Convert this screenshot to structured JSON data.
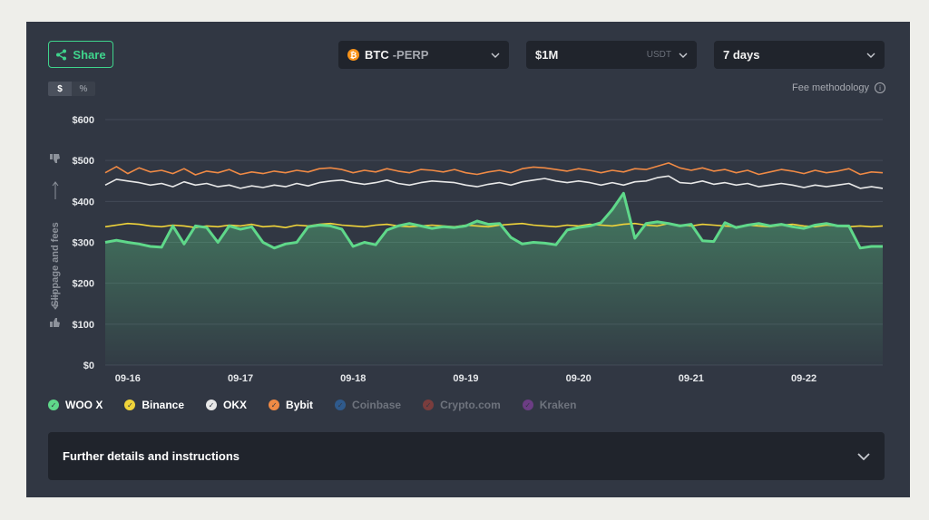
{
  "toolbar": {
    "share_label": "Share",
    "symbol": "BTC",
    "symbol_suffix": "-PERP",
    "size": "$1M",
    "size_unit": "USDT",
    "period": "7 days"
  },
  "unit_toggle": {
    "dollar": "$",
    "percent": "%"
  },
  "fee_link": "Fee methodology",
  "details_label": "Further details and instructions",
  "colors": {
    "woo": "#5fd88a",
    "binance": "#f0d43a",
    "okx": "#e8e8e8",
    "bybit": "#f08a45",
    "coinbase": "#2f5a8c",
    "cryptocom": "#7a3d3d",
    "kraken": "#6c3d84"
  },
  "chart_data": {
    "type": "line",
    "ylabel": "Slippage and fees",
    "ylim": [
      0,
      600
    ],
    "yticks": [
      "$0",
      "$100",
      "$200",
      "$300",
      "$400",
      "$500",
      "$600"
    ],
    "xlim": [
      0,
      6.9
    ],
    "xticks": [
      {
        "x": 0.2,
        "label": "09-16"
      },
      {
        "x": 1.2,
        "label": "09-17"
      },
      {
        "x": 2.2,
        "label": "09-18"
      },
      {
        "x": 3.2,
        "label": "09-19"
      },
      {
        "x": 4.2,
        "label": "09-20"
      },
      {
        "x": 5.2,
        "label": "09-21"
      },
      {
        "x": 6.2,
        "label": "09-22"
      }
    ],
    "grid": true,
    "legend": [
      {
        "key": "woo",
        "name": "WOO X",
        "active": true
      },
      {
        "key": "binance",
        "name": "Binance",
        "active": true
      },
      {
        "key": "okx",
        "name": "OKX",
        "active": true
      },
      {
        "key": "bybit",
        "name": "Bybit",
        "active": true
      },
      {
        "key": "coinbase",
        "name": "Coinbase",
        "active": false
      },
      {
        "key": "cryptocom",
        "name": "Crypto.com",
        "active": false
      },
      {
        "key": "kraken",
        "name": "Kraken",
        "active": false
      }
    ],
    "series": [
      {
        "key": "bybit",
        "name": "Bybit",
        "x": [
          0,
          0.1,
          0.2,
          0.3,
          0.4,
          0.5,
          0.6,
          0.7,
          0.8,
          0.9,
          1.0,
          1.1,
          1.2,
          1.3,
          1.4,
          1.5,
          1.6,
          1.7,
          1.8,
          1.9,
          2.0,
          2.1,
          2.2,
          2.3,
          2.4,
          2.5,
          2.6,
          2.7,
          2.8,
          2.9,
          3.0,
          3.1,
          3.2,
          3.3,
          3.4,
          3.5,
          3.6,
          3.7,
          3.8,
          3.9,
          4.0,
          4.1,
          4.2,
          4.3,
          4.4,
          4.5,
          4.6,
          4.7,
          4.8,
          4.9,
          5.0,
          5.1,
          5.2,
          5.3,
          5.4,
          5.5,
          5.6,
          5.7,
          5.8,
          5.9,
          6.0,
          6.1,
          6.2,
          6.3,
          6.4,
          6.5,
          6.6,
          6.7,
          6.8,
          6.9
        ],
        "y": [
          470,
          485,
          468,
          482,
          472,
          476,
          468,
          480,
          465,
          474,
          470,
          478,
          466,
          472,
          468,
          474,
          470,
          476,
          472,
          480,
          482,
          478,
          470,
          476,
          472,
          480,
          474,
          470,
          478,
          476,
          472,
          478,
          470,
          466,
          472,
          476,
          470,
          480,
          484,
          482,
          478,
          474,
          480,
          476,
          470,
          476,
          472,
          480,
          478,
          486,
          494,
          482,
          476,
          482,
          474,
          478,
          470,
          476,
          466,
          472,
          478,
          474,
          468,
          476,
          470,
          474,
          480,
          466,
          472,
          470
        ]
      },
      {
        "key": "okx",
        "name": "OKX",
        "x": [
          0,
          0.1,
          0.2,
          0.3,
          0.4,
          0.5,
          0.6,
          0.7,
          0.8,
          0.9,
          1.0,
          1.1,
          1.2,
          1.3,
          1.4,
          1.5,
          1.6,
          1.7,
          1.8,
          1.9,
          2.0,
          2.1,
          2.2,
          2.3,
          2.4,
          2.5,
          2.6,
          2.7,
          2.8,
          2.9,
          3.0,
          3.1,
          3.2,
          3.3,
          3.4,
          3.5,
          3.6,
          3.7,
          3.8,
          3.9,
          4.0,
          4.1,
          4.2,
          4.3,
          4.4,
          4.5,
          4.6,
          4.7,
          4.8,
          4.9,
          5.0,
          5.1,
          5.2,
          5.3,
          5.4,
          5.5,
          5.6,
          5.7,
          5.8,
          5.9,
          6.0,
          6.1,
          6.2,
          6.3,
          6.4,
          6.5,
          6.6,
          6.7,
          6.8,
          6.9
        ],
        "y": [
          440,
          454,
          450,
          446,
          440,
          444,
          436,
          448,
          440,
          444,
          436,
          440,
          432,
          438,
          434,
          440,
          436,
          444,
          438,
          446,
          450,
          452,
          446,
          442,
          446,
          452,
          444,
          440,
          446,
          450,
          448,
          446,
          440,
          436,
          442,
          446,
          440,
          448,
          452,
          456,
          450,
          446,
          450,
          446,
          440,
          446,
          440,
          448,
          450,
          458,
          462,
          446,
          444,
          450,
          442,
          446,
          440,
          444,
          436,
          440,
          444,
          440,
          434,
          440,
          436,
          440,
          444,
          432,
          436,
          432
        ]
      },
      {
        "key": "binance",
        "name": "Binance",
        "x": [
          0,
          0.1,
          0.2,
          0.3,
          0.4,
          0.5,
          0.6,
          0.7,
          0.8,
          0.9,
          1.0,
          1.1,
          1.2,
          1.3,
          1.4,
          1.5,
          1.6,
          1.7,
          1.8,
          1.9,
          2.0,
          2.1,
          2.2,
          2.3,
          2.4,
          2.5,
          2.6,
          2.7,
          2.8,
          2.9,
          3.0,
          3.1,
          3.2,
          3.3,
          3.4,
          3.5,
          3.6,
          3.7,
          3.8,
          3.9,
          4.0,
          4.1,
          4.2,
          4.3,
          4.4,
          4.5,
          4.6,
          4.7,
          4.8,
          4.9,
          5.0,
          5.1,
          5.2,
          5.3,
          5.4,
          5.5,
          5.6,
          5.7,
          5.8,
          5.9,
          6.0,
          6.1,
          6.2,
          6.3,
          6.4,
          6.5,
          6.6,
          6.7,
          6.8,
          6.9
        ],
        "y": [
          338,
          342,
          346,
          344,
          340,
          338,
          342,
          340,
          336,
          340,
          338,
          342,
          340,
          344,
          338,
          340,
          336,
          342,
          340,
          344,
          346,
          342,
          340,
          338,
          342,
          344,
          340,
          338,
          340,
          342,
          340,
          338,
          342,
          340,
          338,
          342,
          344,
          346,
          342,
          340,
          338,
          342,
          340,
          344,
          342,
          340,
          344,
          346,
          342,
          340,
          346,
          342,
          340,
          344,
          342,
          340,
          338,
          342,
          340,
          338,
          342,
          344,
          340,
          338,
          342,
          340,
          338,
          340,
          338,
          340
        ]
      },
      {
        "key": "woo",
        "name": "WOO X",
        "x": [
          0,
          0.1,
          0.2,
          0.3,
          0.4,
          0.5,
          0.6,
          0.7,
          0.8,
          0.9,
          1.0,
          1.1,
          1.2,
          1.3,
          1.4,
          1.5,
          1.6,
          1.7,
          1.8,
          1.9,
          2.0,
          2.1,
          2.2,
          2.3,
          2.4,
          2.5,
          2.6,
          2.7,
          2.8,
          2.9,
          3.0,
          3.1,
          3.2,
          3.3,
          3.4,
          3.5,
          3.6,
          3.7,
          3.8,
          3.9,
          4.0,
          4.1,
          4.2,
          4.3,
          4.4,
          4.5,
          4.6,
          4.7,
          4.8,
          4.9,
          5.0,
          5.1,
          5.2,
          5.3,
          5.4,
          5.5,
          5.6,
          5.7,
          5.8,
          5.9,
          6.0,
          6.1,
          6.2,
          6.3,
          6.4,
          6.5,
          6.6,
          6.7,
          6.8,
          6.9
        ],
        "y": [
          300,
          305,
          300,
          296,
          290,
          288,
          340,
          296,
          340,
          336,
          300,
          340,
          332,
          338,
          300,
          286,
          296,
          300,
          338,
          342,
          340,
          332,
          290,
          300,
          294,
          330,
          340,
          346,
          340,
          334,
          338,
          336,
          340,
          352,
          344,
          346,
          312,
          296,
          300,
          298,
          294,
          330,
          336,
          340,
          348,
          380,
          420,
          310,
          346,
          350,
          346,
          340,
          344,
          304,
          302,
          348,
          336,
          342,
          346,
          340,
          344,
          338,
          334,
          342,
          346,
          340,
          340,
          286,
          290,
          290
        ]
      }
    ]
  }
}
